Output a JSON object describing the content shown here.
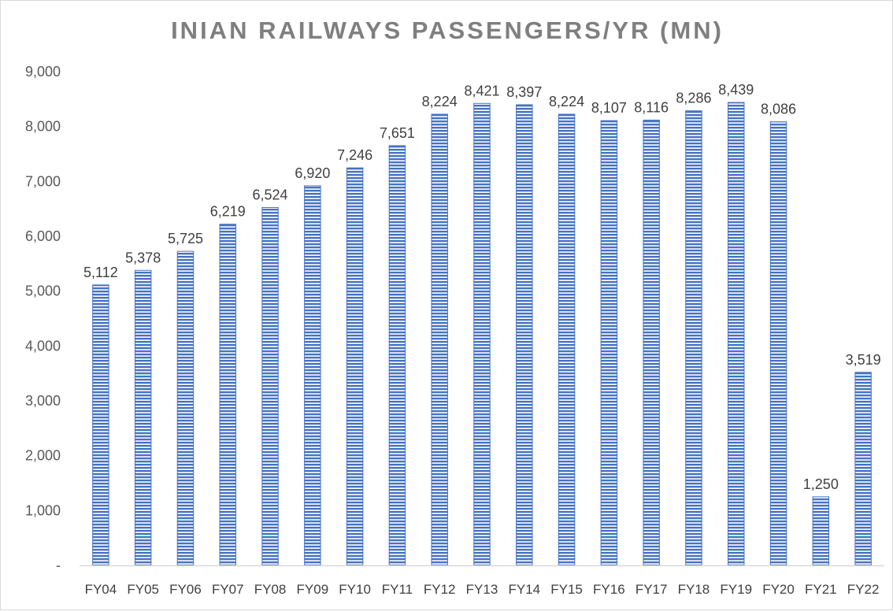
{
  "chart_data": {
    "type": "bar",
    "title": "INIAN RAILWAYS PASSENGERS/YR (MN)",
    "xlabel": "",
    "ylabel": "",
    "ylim": [
      0,
      9000
    ],
    "yticks": [
      0,
      1000,
      2000,
      3000,
      4000,
      5000,
      6000,
      7000,
      8000,
      9000
    ],
    "ytick_labels": [
      "-",
      "1,000",
      "2,000",
      "3,000",
      "4,000",
      "5,000",
      "6,000",
      "7,000",
      "8,000",
      "9,000"
    ],
    "categories": [
      "FY04",
      "FY05",
      "FY06",
      "FY07",
      "FY08",
      "FY09",
      "FY10",
      "FY11",
      "FY12",
      "FY13",
      "FY14",
      "FY15",
      "FY16",
      "FY17",
      "FY18",
      "FY19",
      "FY20",
      "FY21",
      "FY22"
    ],
    "values": [
      5112,
      5378,
      5725,
      6219,
      6524,
      6920,
      7246,
      7651,
      8224,
      8421,
      8397,
      8224,
      8107,
      8116,
      8286,
      8439,
      8086,
      1250,
      3519
    ],
    "data_labels": [
      "5,112",
      "5,378",
      "5,725",
      "6,219",
      "6,524",
      "6,920",
      "7,246",
      "7,651",
      "8,224",
      "8,421",
      "8,397",
      "8,224",
      "8,107",
      "8,116",
      "8,286",
      "8,439",
      "8,086",
      "1,250",
      "3,519"
    ],
    "grid": false,
    "legend": "none",
    "colors": {
      "bar": "#4472c4",
      "bar_stripe": "#ffffff",
      "title": "#7f7f7f",
      "axis": "#d9d9d9"
    }
  }
}
